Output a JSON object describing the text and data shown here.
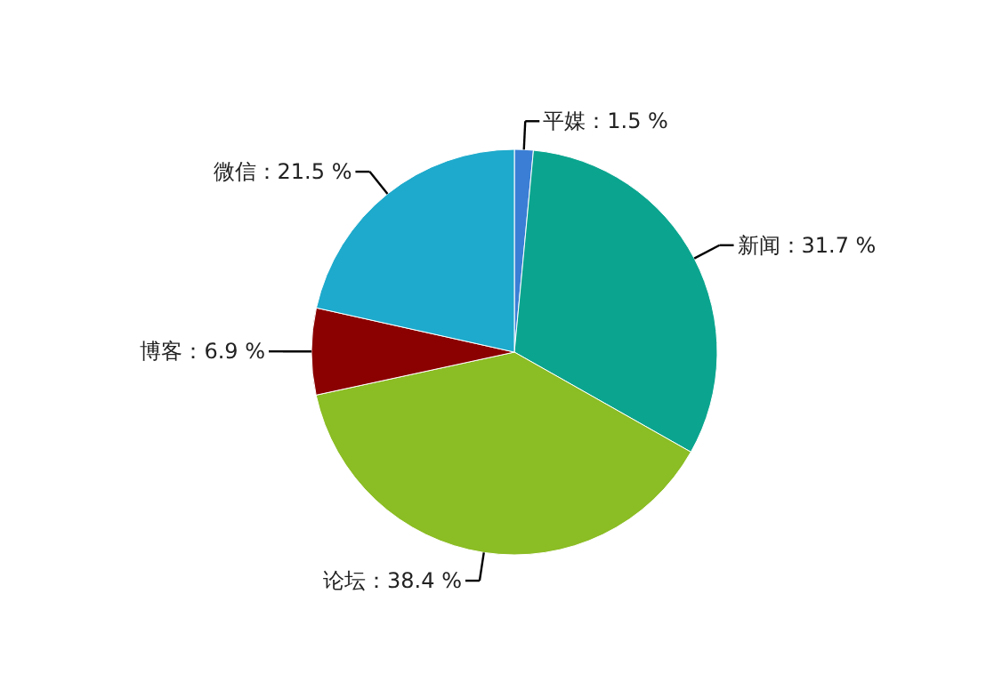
{
  "chart_data": {
    "type": "pie",
    "categories": [
      "平媒",
      "新闻",
      "论坛",
      "博客",
      "微信"
    ],
    "values": [
      1.5,
      31.7,
      38.4,
      6.9,
      21.5
    ],
    "colors": [
      "#3a7fd5",
      "#0ba58f",
      "#8bbd24",
      "#8b0000",
      "#1eaacc"
    ],
    "value_labels": [
      "1.5 %",
      "31.7 %",
      "38.4 %",
      "6.9 %",
      "21.5 %"
    ]
  }
}
